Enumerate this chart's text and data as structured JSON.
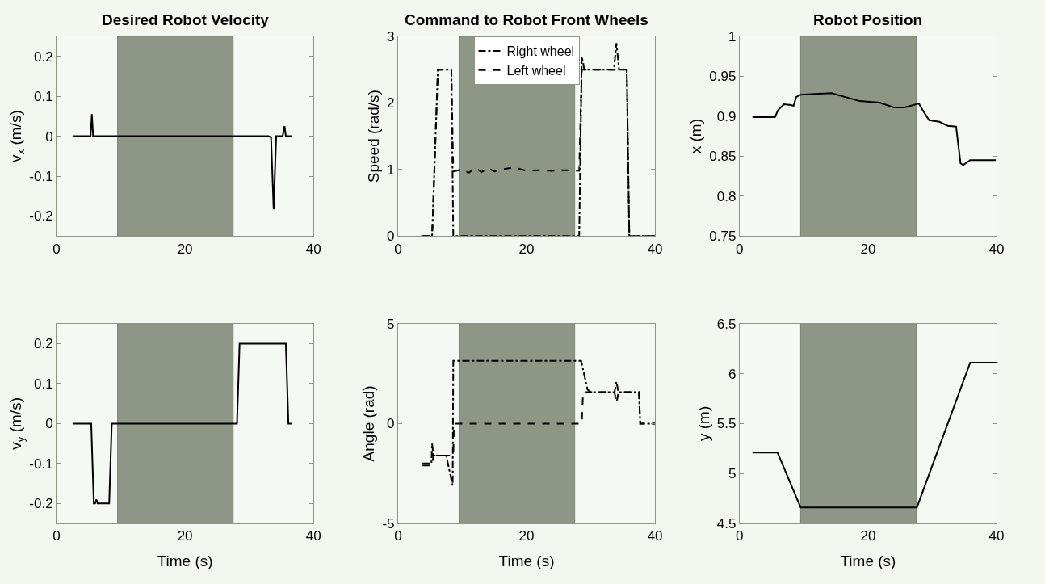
{
  "chart_data": [
    {
      "type": "line",
      "title": "Desired Robot Velocity",
      "ylabel": "v$_{x}$ (m/s)",
      "xlim": [
        0,
        40
      ],
      "xticks": [
        0,
        20,
        40
      ],
      "ylim": [
        -0.25,
        0.25
      ],
      "yticks": [
        -0.2,
        -0.1,
        0,
        0.1,
        0.2
      ],
      "grid": false,
      "legend": false,
      "bands": [
        {
          "axis": "x",
          "from": 9.5,
          "to": 27.5,
          "color": "#8e9686"
        }
      ],
      "series": [
        {
          "color": "#000000",
          "line_style": "solid",
          "x": [
            2.5,
            5.3,
            5.5,
            5.7,
            33.0,
            33.4,
            33.8,
            34.2,
            35.2,
            35.5,
            35.7,
            36.7
          ],
          "values": [
            0,
            0,
            0.055,
            0,
            0,
            -0.003,
            -0.183,
            0,
            0,
            0.025,
            0,
            0
          ]
        }
      ]
    },
    {
      "type": "line",
      "title": "Command to Robot Front Wheels",
      "ylabel": "Speed (rad/s)",
      "xlim": [
        0,
        40
      ],
      "xticks": [
        0,
        20,
        40
      ],
      "ylim": [
        0,
        3
      ],
      "yticks": [
        0,
        1,
        2,
        3
      ],
      "grid": false,
      "legend": "top",
      "bands": [
        {
          "axis": "x",
          "from": 9.5,
          "to": 27.5,
          "color": "#8e9686"
        }
      ],
      "series": [
        {
          "name": "Right wheel",
          "color": "#000000",
          "line_style": "dashdot",
          "x": [
            3.8,
            5.3,
            6.2,
            8.3,
            8.6,
            28.2,
            28.6,
            29.0,
            33.6,
            34.0,
            34.4,
            35.6,
            36.0,
            40
          ],
          "values": [
            0,
            0,
            2.5,
            2.5,
            0,
            0,
            2.7,
            2.5,
            2.5,
            2.9,
            2.5,
            2.5,
            0,
            0
          ]
        },
        {
          "name": "Left wheel",
          "color": "#000000",
          "line_style": "dashed",
          "x": [
            3.8,
            5.3,
            6.2,
            8.3,
            8.6,
            10,
            11,
            12,
            13,
            14,
            15,
            16,
            18,
            20,
            22,
            24,
            26,
            28.2,
            28.6,
            29,
            35.6,
            36,
            40
          ],
          "values": [
            0,
            0,
            2.5,
            2.5,
            0.97,
            1.0,
            0.95,
            1.03,
            0.96,
            1.02,
            0.97,
            1.0,
            1.03,
            0.98,
            0.99,
            0.98,
            0.99,
            0.98,
            2.5,
            2.5,
            2.5,
            0,
            0
          ]
        }
      ]
    },
    {
      "type": "line",
      "title": "Robot Position",
      "ylabel": "x (m)",
      "xlim": [
        0,
        40
      ],
      "xticks": [
        0,
        20,
        40
      ],
      "ylim": [
        0.75,
        1
      ],
      "yticks": [
        0.75,
        0.8,
        0.85,
        0.9,
        0.95,
        1
      ],
      "grid": false,
      "legend": false,
      "bands": [
        {
          "axis": "x",
          "from": 9.5,
          "to": 27.5,
          "color": "#8e9686"
        }
      ],
      "series": [
        {
          "color": "#000000",
          "line_style": "solid",
          "x": [
            2.0,
            5.5,
            6.0,
            6.9,
            8.0,
            8.4,
            8.8,
            9.5,
            14.3,
            18.7,
            21.8,
            24.0,
            25.7,
            27.9,
            28.4,
            29.5,
            31.1,
            32.4,
            33.7,
            34.4,
            34.8,
            35.9,
            39.9
          ],
          "values": [
            0.899,
            0.899,
            0.908,
            0.915,
            0.914,
            0.913,
            0.924,
            0.927,
            0.929,
            0.919,
            0.917,
            0.911,
            0.911,
            0.916,
            0.909,
            0.895,
            0.893,
            0.888,
            0.887,
            0.841,
            0.839,
            0.845,
            0.845
          ]
        }
      ]
    },
    {
      "type": "line",
      "ylabel": "v$_{y}$ (m/s)",
      "xlabel": "Time (s)",
      "xlim": [
        0,
        40
      ],
      "xticks": [
        0,
        20,
        40
      ],
      "ylim": [
        -0.25,
        0.25
      ],
      "yticks": [
        -0.2,
        -0.1,
        0,
        0.1,
        0.2
      ],
      "grid": false,
      "legend": false,
      "bands": [
        {
          "axis": "x",
          "from": 9.5,
          "to": 27.5,
          "color": "#8e9686"
        }
      ],
      "series": [
        {
          "color": "#000000",
          "line_style": "solid",
          "x": [
            2.5,
            5.4,
            5.8,
            6.0,
            6.2,
            6.4,
            8.2,
            8.6,
            28.1,
            28.5,
            35.7,
            36.1,
            36.7
          ],
          "values": [
            0,
            0,
            -0.2,
            -0.2,
            -0.19,
            -0.2,
            -0.2,
            0,
            0,
            0.2,
            0.2,
            0,
            0
          ]
        }
      ]
    },
    {
      "type": "line",
      "ylabel": "Angle (rad)",
      "xlabel": "Time (s)",
      "xlim": [
        0,
        40
      ],
      "xticks": [
        0,
        20,
        40
      ],
      "ylim": [
        -5,
        5
      ],
      "yticks": [
        -5,
        0,
        5
      ],
      "grid": false,
      "legend": false,
      "bands": [
        {
          "axis": "x",
          "from": 9.5,
          "to": 27.5,
          "color": "#8e9686"
        }
      ],
      "series": [
        {
          "color": "#000000",
          "line_style": "dashdot",
          "x": [
            3.8,
            5.2,
            5.3,
            5.5,
            7.5,
            8.5,
            8.6,
            28.5,
            29.5,
            30,
            33.7,
            34,
            34.3,
            37.5,
            37.7,
            40
          ],
          "values": [
            -2,
            -2,
            -1,
            -1.6,
            -1.6,
            -3.1,
            3.14,
            3.14,
            1.7,
            1.57,
            1.57,
            2.1,
            1.57,
            1.57,
            0,
            0
          ]
        },
        {
          "color": "#000000",
          "line_style": "dashed",
          "x": [
            3.8,
            5.3,
            5.5,
            7.5,
            8.6,
            8.7,
            28.6,
            28.8,
            33.7,
            34,
            34.3,
            37.5,
            37.7,
            40
          ],
          "values": [
            -2.1,
            -2.1,
            -1.6,
            -1.6,
            -1.6,
            0,
            0,
            1.57,
            1.57,
            1.0,
            1.57,
            1.57,
            0,
            0
          ]
        }
      ]
    },
    {
      "type": "line",
      "ylabel": "y (m)",
      "xlabel": "Time (s)",
      "xlim": [
        0,
        40
      ],
      "xticks": [
        0,
        20,
        40
      ],
      "ylim": [
        4.5,
        6.5
      ],
      "yticks": [
        4.5,
        5,
        5.5,
        6,
        6.5
      ],
      "grid": false,
      "legend": false,
      "bands": [
        {
          "axis": "x",
          "from": 9.5,
          "to": 27.5,
          "color": "#8e9686"
        }
      ],
      "series": [
        {
          "color": "#000000",
          "line_style": "solid",
          "x": [
            2.0,
            5.9,
            9.5,
            27.6,
            35.9,
            40
          ],
          "values": [
            5.21,
            5.21,
            4.66,
            4.66,
            6.11,
            6.11
          ]
        }
      ]
    }
  ]
}
